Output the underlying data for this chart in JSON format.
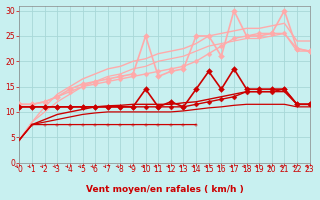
{
  "background_color": "#c8f0f0",
  "grid_color": "#a8d8d8",
  "xlabel": "Vent moyen/en rafales ( km/h )",
  "xlim": [
    0,
    23
  ],
  "ylim": [
    0,
    31
  ],
  "yticks": [
    0,
    5,
    10,
    15,
    20,
    25,
    30
  ],
  "xticks": [
    0,
    1,
    2,
    3,
    4,
    5,
    6,
    7,
    8,
    9,
    10,
    11,
    12,
    13,
    14,
    15,
    16,
    17,
    18,
    19,
    20,
    21,
    22,
    23
  ],
  "lines": [
    {
      "x": [
        0,
        1,
        2,
        3,
        4,
        5,
        6,
        7,
        8,
        9,
        10,
        11,
        12,
        13,
        14
      ],
      "y": [
        4.5,
        7.5,
        7.5,
        7.5,
        7.5,
        7.5,
        7.5,
        7.5,
        7.5,
        7.5,
        7.5,
        7.5,
        7.5,
        7.5,
        7.5
      ],
      "color": "#cc0000",
      "lw": 0.9,
      "marker": "+",
      "ms": 3,
      "zorder": 4
    },
    {
      "x": [
        0,
        1,
        2,
        3,
        4,
        5,
        6,
        7,
        8,
        9,
        10,
        11,
        12,
        13,
        14,
        15,
        16,
        17,
        18,
        19,
        20,
        21,
        22,
        23
      ],
      "y": [
        4.5,
        7.5,
        8.0,
        8.5,
        9.0,
        9.5,
        9.8,
        10.0,
        10.0,
        10.0,
        10.0,
        10.0,
        10.0,
        10.2,
        10.5,
        10.8,
        11.0,
        11.3,
        11.5,
        11.5,
        11.5,
        11.5,
        11.0,
        11.0
      ],
      "color": "#cc0000",
      "lw": 0.9,
      "marker": null,
      "ms": 0,
      "zorder": 3
    },
    {
      "x": [
        0,
        1,
        2,
        3,
        4,
        5,
        6,
        7,
        8,
        9,
        10,
        11,
        12,
        13,
        14,
        15,
        16,
        17,
        18,
        19,
        20,
        21,
        22,
        23
      ],
      "y": [
        4.5,
        7.5,
        8.5,
        9.5,
        10.0,
        10.5,
        11.0,
        11.2,
        11.3,
        11.5,
        11.5,
        11.5,
        11.5,
        11.8,
        12.0,
        12.5,
        13.0,
        13.5,
        14.0,
        14.0,
        14.0,
        14.0,
        11.5,
        11.5
      ],
      "color": "#cc0000",
      "lw": 1.0,
      "marker": null,
      "ms": 0,
      "zorder": 3
    },
    {
      "x": [
        0,
        1,
        2,
        3,
        4,
        5,
        6,
        7,
        8,
        9,
        10,
        11,
        12,
        13,
        14,
        15,
        16,
        17,
        18,
        19,
        20,
        21,
        22,
        23
      ],
      "y": [
        11.0,
        11.0,
        11.0,
        11.0,
        11.0,
        11.0,
        11.0,
        11.0,
        11.0,
        11.0,
        11.0,
        11.0,
        11.0,
        11.0,
        11.5,
        12.0,
        12.5,
        13.0,
        14.0,
        14.0,
        14.0,
        14.5,
        11.5,
        11.5
      ],
      "color": "#cc0000",
      "lw": 1.0,
      "marker": "D",
      "ms": 2.5,
      "zorder": 5
    },
    {
      "x": [
        0,
        1,
        2,
        3,
        4,
        5,
        6,
        7,
        8,
        9,
        10,
        11,
        12,
        13,
        14,
        15,
        16,
        17,
        18,
        19,
        20,
        21,
        22,
        23
      ],
      "y": [
        11.0,
        11.0,
        11.0,
        11.0,
        11.0,
        11.0,
        11.0,
        11.0,
        11.0,
        11.0,
        14.5,
        11.0,
        12.0,
        11.0,
        14.5,
        18.0,
        14.5,
        18.5,
        14.5,
        14.5,
        14.5,
        14.5,
        11.5,
        11.5
      ],
      "color": "#cc0000",
      "lw": 1.2,
      "marker": "D",
      "ms": 3,
      "zorder": 5
    },
    {
      "x": [
        0,
        1,
        2,
        3,
        4,
        5,
        6,
        7,
        8,
        9,
        10,
        11,
        12,
        13,
        14,
        15,
        16,
        17,
        18,
        19,
        20,
        21,
        22,
        23
      ],
      "y": [
        4.5,
        8.0,
        10.0,
        12.0,
        13.5,
        15.0,
        16.0,
        17.0,
        17.5,
        18.5,
        19.0,
        20.0,
        20.5,
        21.0,
        22.0,
        23.0,
        23.5,
        24.0,
        24.5,
        24.5,
        25.0,
        25.5,
        22.0,
        22.0
      ],
      "color": "#ffaaaa",
      "lw": 0.9,
      "marker": null,
      "ms": 0,
      "zorder": 2
    },
    {
      "x": [
        0,
        1,
        2,
        3,
        4,
        5,
        6,
        7,
        8,
        9,
        10,
        11,
        12,
        13,
        14,
        15,
        16,
        17,
        18,
        19,
        20,
        21,
        22,
        23
      ],
      "y": [
        4.5,
        8.0,
        11.0,
        13.5,
        15.0,
        16.5,
        17.5,
        18.5,
        19.0,
        20.0,
        20.5,
        21.5,
        22.0,
        22.5,
        23.5,
        25.0,
        25.5,
        26.0,
        26.5,
        26.5,
        27.0,
        27.5,
        24.0,
        24.0
      ],
      "color": "#ffaaaa",
      "lw": 1.0,
      "marker": null,
      "ms": 0,
      "zorder": 2
    },
    {
      "x": [
        0,
        1,
        2,
        3,
        4,
        5,
        6,
        7,
        8,
        9,
        10,
        11,
        12,
        13,
        14,
        15,
        16,
        17,
        18,
        19,
        20,
        21,
        22,
        23
      ],
      "y": [
        11.5,
        11.5,
        12.0,
        13.0,
        14.0,
        15.0,
        15.5,
        16.0,
        16.5,
        17.0,
        17.5,
        18.0,
        18.5,
        19.0,
        20.0,
        21.5,
        23.0,
        24.5,
        25.0,
        25.5,
        25.5,
        25.5,
        22.5,
        22.0
      ],
      "color": "#ffaaaa",
      "lw": 1.0,
      "marker": "D",
      "ms": 2.5,
      "zorder": 4
    },
    {
      "x": [
        0,
        1,
        2,
        3,
        4,
        5,
        6,
        7,
        8,
        9,
        10,
        11,
        12,
        13,
        14,
        15,
        16,
        17,
        18,
        19,
        20,
        21,
        22,
        23
      ],
      "y": [
        11.5,
        11.5,
        12.0,
        13.0,
        14.5,
        15.5,
        16.0,
        16.5,
        17.0,
        17.5,
        25.0,
        17.0,
        18.0,
        18.5,
        25.0,
        25.0,
        21.0,
        30.0,
        25.0,
        25.0,
        25.5,
        30.0,
        22.5,
        22.0
      ],
      "color": "#ffaaaa",
      "lw": 1.2,
      "marker": "D",
      "ms": 3,
      "zorder": 4
    }
  ],
  "arrow_color": "#cc0000",
  "xlabel_color": "#cc0000",
  "xlabel_fontsize": 6.5,
  "tick_fontsize": 5.5,
  "tick_color": "#cc0000"
}
